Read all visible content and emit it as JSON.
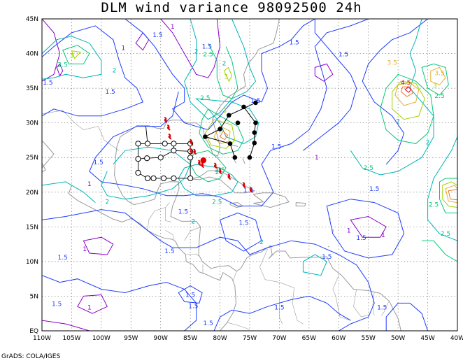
{
  "title": "DLM wind variance 98092500 24h",
  "credit": "GrADS: COLA/IGES",
  "axes": {
    "lat_labels": [
      "45N",
      "40N",
      "35N",
      "30N",
      "25N",
      "20N",
      "15N",
      "10N",
      "5N",
      "EQ"
    ],
    "lon_labels": [
      "110W",
      "105W",
      "100W",
      "95W",
      "90W",
      "85W",
      "80W",
      "75W",
      "70W",
      "65W",
      "60W",
      "55W",
      "50W",
      "45W",
      "40W"
    ]
  },
  "contour_levels": {
    "1": "#8a00c8",
    "1.5": "#1e3cff",
    "2": "#00b4b4",
    "2.5": "#00c878",
    "3": "#a0d200",
    "3.5": "#e6af2d",
    "4": "#f07828",
    "4.5": "#e6001e"
  },
  "contour_labels": [
    {
      "text": "1.5",
      "level": "1.5",
      "lon": -90.5,
      "lat": 42.7
    },
    {
      "text": "1.5",
      "level": "1.5",
      "lon": -109.0,
      "lat": 35.8
    },
    {
      "text": "1.5",
      "level": "1.5",
      "lon": -98.5,
      "lat": 34.5
    },
    {
      "text": "1.5",
      "level": "1.5",
      "lon": -82.2,
      "lat": 41.0
    },
    {
      "text": "1.5",
      "level": "1.5",
      "lon": -67.5,
      "lat": 41.6
    },
    {
      "text": "1.5",
      "level": "1.5",
      "lon": -59.2,
      "lat": 39.9
    },
    {
      "text": "1.5",
      "level": "1.5",
      "lon": -74.0,
      "lat": 33.2
    },
    {
      "text": "1.5",
      "level": "1.5",
      "lon": -100.5,
      "lat": 24.3
    },
    {
      "text": "1.5",
      "level": "1.5",
      "lon": -70.5,
      "lat": 26.6
    },
    {
      "text": "1.5",
      "level": "1.5",
      "lon": -54.0,
      "lat": 20.5
    },
    {
      "text": "1.5",
      "level": "1.5",
      "lon": -75.2,
      "lat": 20.3
    },
    {
      "text": "1.5",
      "level": "1.5",
      "lon": -86.2,
      "lat": 17.2
    },
    {
      "text": "1.5",
      "level": "1.5",
      "lon": -76.0,
      "lat": 15.6
    },
    {
      "text": "1.5",
      "level": "1.5",
      "lon": -106.5,
      "lat": 10.6
    },
    {
      "text": "1.5",
      "level": "1.5",
      "lon": -88.5,
      "lat": 11.5
    },
    {
      "text": "1.5",
      "level": "1.5",
      "lon": -62.0,
      "lat": 10.7
    },
    {
      "text": "1.5",
      "level": "1.5",
      "lon": -56.2,
      "lat": 13.4
    },
    {
      "text": "1.5",
      "level": "1.5",
      "lon": -107.5,
      "lat": 3.9
    },
    {
      "text": "1.5",
      "level": "1.5",
      "lon": -85.0,
      "lat": 5.2
    },
    {
      "text": "1.5",
      "level": "1.5",
      "lon": -84.5,
      "lat": 3.6
    },
    {
      "text": "1.5",
      "level": "1.5",
      "lon": -82.0,
      "lat": 1.1
    },
    {
      "text": "1.5",
      "level": "1.5",
      "lon": -70.0,
      "lat": 3.4
    },
    {
      "text": "1.5",
      "level": "1.5",
      "lon": -52.7,
      "lat": 3.4
    },
    {
      "text": "1",
      "level": "1",
      "lon": -88.0,
      "lat": 43.9
    },
    {
      "text": "1",
      "level": "1",
      "lon": -96.3,
      "lat": 40.8
    },
    {
      "text": "1",
      "level": "1",
      "lon": -102.0,
      "lat": 21.2
    },
    {
      "text": "1",
      "level": "1",
      "lon": -63.7,
      "lat": 25.0
    },
    {
      "text": "1",
      "level": "1",
      "lon": -102.8,
      "lat": 11.8
    },
    {
      "text": "1",
      "level": "1",
      "lon": -102.0,
      "lat": 3.4
    },
    {
      "text": "1",
      "level": "1",
      "lon": -52.5,
      "lat": 13.8
    },
    {
      "text": "1",
      "level": "1",
      "lon": -58.3,
      "lat": 14.5
    },
    {
      "text": "2",
      "level": "2",
      "lon": -97.8,
      "lat": 37.6
    },
    {
      "text": "2",
      "level": "2",
      "lon": -84.0,
      "lat": 40.3
    },
    {
      "text": "2",
      "level": "2",
      "lon": -79.3,
      "lat": 38.6
    },
    {
      "text": "2",
      "level": "2",
      "lon": -99.0,
      "lat": 18.6
    },
    {
      "text": "2",
      "level": "2",
      "lon": -80.5,
      "lat": 22.9
    },
    {
      "text": "2",
      "level": "2",
      "lon": -84.5,
      "lat": 15.8
    },
    {
      "text": "2",
      "level": "2",
      "lon": -50.0,
      "lat": 30.2
    },
    {
      "text": "2",
      "level": "2",
      "lon": -73.0,
      "lat": 12.8
    },
    {
      "text": "2",
      "level": "2",
      "lon": -45.0,
      "lat": 27.2
    },
    {
      "text": "2.5",
      "level": "2.5",
      "lon": -106.5,
      "lat": 38.4
    },
    {
      "text": "2.5",
      "level": "2.5",
      "lon": -82.0,
      "lat": 39.9
    },
    {
      "text": "2.5",
      "level": "2.5",
      "lon": -82.5,
      "lat": 33.6
    },
    {
      "text": "2.5",
      "level": "2.5",
      "lon": -80.0,
      "lat": 23.2
    },
    {
      "text": "2.5",
      "level": "2.5",
      "lon": -80.5,
      "lat": 18.6
    },
    {
      "text": "2.5",
      "level": "2.5",
      "lon": -55.0,
      "lat": 23.5
    },
    {
      "text": "2.5",
      "level": "2.5",
      "lon": -43.0,
      "lat": 33.9
    },
    {
      "text": "2.5",
      "level": "2.5",
      "lon": -44.0,
      "lat": 18.2
    },
    {
      "text": "2.5",
      "level": "2.5",
      "lon": -42.0,
      "lat": 14.0
    },
    {
      "text": "3",
      "level": "3",
      "lon": -105.0,
      "lat": 39.7
    },
    {
      "text": "3",
      "level": "3",
      "lon": -79.0,
      "lat": 36.7
    },
    {
      "text": "3",
      "level": "3",
      "lon": -79.2,
      "lat": 31.8
    },
    {
      "text": "3",
      "level": "3",
      "lon": -43.8,
      "lat": 35.4
    },
    {
      "text": "3.5",
      "level": "3.5",
      "lon": -51.0,
      "lat": 38.7
    },
    {
      "text": "3.5",
      "level": "3.5",
      "lon": -43.0,
      "lat": 37.2
    },
    {
      "text": "4.5",
      "level": "4.5",
      "lon": -48.7,
      "lat": 35.8
    }
  ],
  "ensemble_track": [
    {
      "lon": -74.0,
      "lat": 32.9
    },
    {
      "lon": -76.0,
      "lat": 32.3
    },
    {
      "lon": -78.5,
      "lat": 31.1
    },
    {
      "lon": -77.0,
      "lat": 30.0
    },
    {
      "lon": -74.0,
      "lat": 30.0
    },
    {
      "lon": -80.0,
      "lat": 29.1
    },
    {
      "lon": -74.2,
      "lat": 28.6
    },
    {
      "lon": -82.5,
      "lat": 28.0
    },
    {
      "lon": -74.2,
      "lat": 27.1
    },
    {
      "lon": -78.3,
      "lat": 27.0
    },
    {
      "lon": -75.0,
      "lat": 25.0
    },
    {
      "lon": -77.5,
      "lat": 25.0
    }
  ],
  "alt_track": [
    {
      "lon": -85.0,
      "lat": 27.0
    },
    {
      "lon": -87.8,
      "lat": 27.0
    },
    {
      "lon": -89.3,
      "lat": 27.0
    },
    {
      "lon": -92.2,
      "lat": 27.0
    },
    {
      "lon": -93.8,
      "lat": 27.0
    },
    {
      "lon": -87.8,
      "lat": 26.0
    },
    {
      "lon": -85.0,
      "lat": 25.9
    },
    {
      "lon": -90.0,
      "lat": 25.0
    },
    {
      "lon": -92.3,
      "lat": 24.9
    },
    {
      "lon": -93.8,
      "lat": 24.8
    },
    {
      "lon": -85.0,
      "lat": 25.0
    },
    {
      "lon": -93.8,
      "lat": 22.8
    },
    {
      "lon": -92.2,
      "lat": 22.0
    },
    {
      "lon": -91.2,
      "lat": 22.0
    },
    {
      "lon": -89.5,
      "lat": 22.0
    },
    {
      "lon": -87.8,
      "lat": 22.0
    },
    {
      "lon": -85.0,
      "lat": 22.0
    }
  ],
  "red_marks": [
    {
      "lon": -89.2,
      "lat": 30.4
    },
    {
      "lon": -88.7,
      "lat": 29.3
    },
    {
      "lon": -88.5,
      "lat": 28.0
    },
    {
      "lon": -84.9,
      "lat": 27.2
    },
    {
      "lon": -84.3,
      "lat": 25.8
    },
    {
      "lon": -83.5,
      "lat": 24.2
    },
    {
      "lon": -83.0,
      "lat": 23.9
    },
    {
      "lon": -80.8,
      "lat": 23.8
    },
    {
      "lon": -80.0,
      "lat": 23.0
    },
    {
      "lon": -78.5,
      "lat": 22.2
    },
    {
      "lon": -76.0,
      "lat": 21.0
    },
    {
      "lon": -74.8,
      "lat": 20.3
    },
    {
      "lon": -84.9,
      "lat": 25.9
    }
  ],
  "red_dot": {
    "lon": -82.8,
    "lat": 24.6
  }
}
